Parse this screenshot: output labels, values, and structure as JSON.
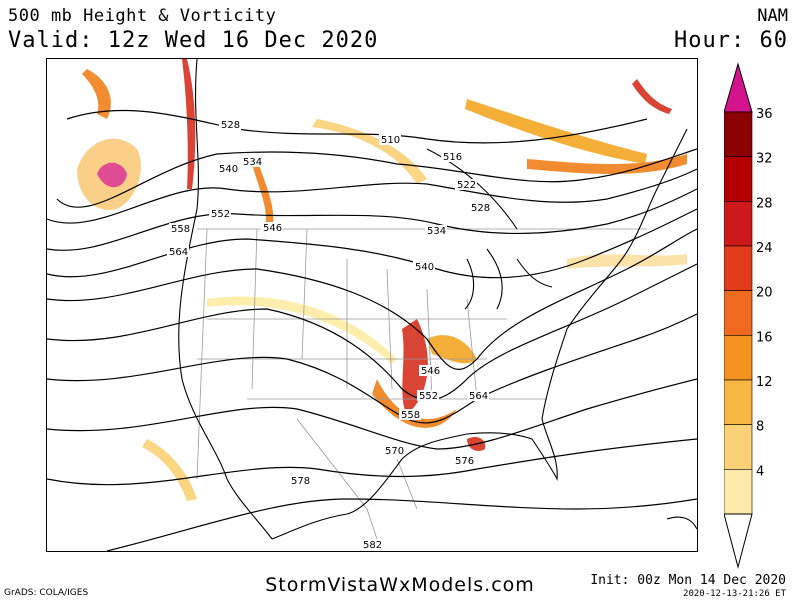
{
  "header": {
    "title_line1": "500 mb Height & Vorticity",
    "title_line2": "Valid: 12z Wed 16 Dec 2020",
    "model": "NAM",
    "hour": "Hour: 60"
  },
  "map": {
    "contour_labels": [
      "528",
      "510",
      "516",
      "522",
      "528",
      "534",
      "534",
      "540",
      "540",
      "546",
      "552",
      "558",
      "564",
      "546",
      "552",
      "558",
      "564",
      "570",
      "576",
      "578",
      "582"
    ],
    "colors": {
      "contour": "#000000",
      "borders": "#9a9a9a",
      "coast": "#000000",
      "vort_light": "#fde37a",
      "vort_mid": "#f5a623",
      "vort_orange": "#ef7f1a",
      "vort_red": "#d7301f",
      "vort_dark": "#990000",
      "vort_max": "#d4148c"
    }
  },
  "colorbar": {
    "labels": [
      "36",
      "32",
      "28",
      "24",
      "20",
      "16",
      "12",
      "8",
      "4"
    ],
    "colors": [
      "#8b0000",
      "#b30000",
      "#cc1a1a",
      "#e03c1c",
      "#ef6a1f",
      "#f49320",
      "#f7b541",
      "#fad176",
      "#fde9a8"
    ],
    "top_color": "#d4148c"
  },
  "footer": {
    "site": "StormVistaWxModels.com",
    "grads": "GrADS: COLA/IGES",
    "init": "Init: 00z Mon 14 Dec 2020",
    "stamp": "2020-12-13-21:26 ET"
  }
}
